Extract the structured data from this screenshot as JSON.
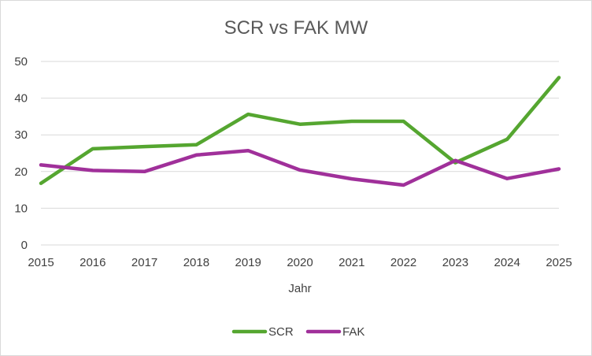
{
  "chart_data": {
    "type": "line",
    "title": "SCR vs FAK MW",
    "xlabel": "Jahr",
    "ylabel": "",
    "x": [
      "2015",
      "2016",
      "2017",
      "2018",
      "2019",
      "2020",
      "2021",
      "2022",
      "2023",
      "2024",
      "2025"
    ],
    "ylim": [
      0,
      50
    ],
    "yticks": [
      0,
      10,
      20,
      30,
      40,
      50
    ],
    "grid": true,
    "legend_position": "bottom",
    "series": [
      {
        "name": "SCR",
        "color": "#55a630",
        "values": [
          16.8,
          26.2,
          26.8,
          27.3,
          35.6,
          32.9,
          33.7,
          33.7,
          22.4,
          28.8,
          45.6
        ]
      },
      {
        "name": "FAK",
        "color": "#a0309a",
        "values": [
          21.8,
          20.3,
          20.0,
          24.5,
          25.7,
          20.4,
          18.0,
          16.3,
          23.0,
          18.1,
          20.7
        ]
      }
    ]
  }
}
